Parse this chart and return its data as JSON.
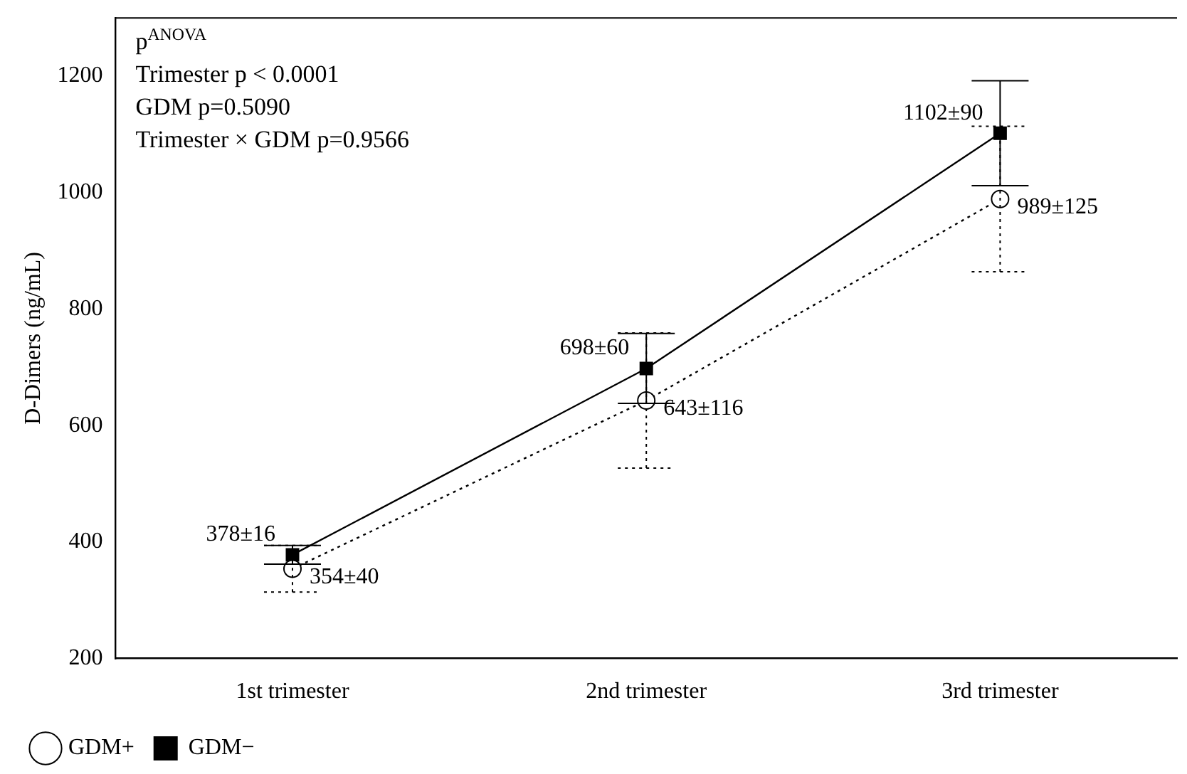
{
  "chart_data": {
    "type": "line",
    "ylabel": "D-Dimers (ng/mL)",
    "categories": [
      "1st trimester",
      "2nd trimester",
      "3rd trimester"
    ],
    "series": [
      {
        "name": "GDM+",
        "color": "#000000",
        "values": [
          354,
          643,
          989
        ],
        "errors": [
          40,
          116,
          125
        ],
        "value_labels": [
          "354±40",
          "643±116",
          "989±125"
        ],
        "marker": "circle",
        "line_style": "dotted"
      },
      {
        "name": "GDM−",
        "color": "#000000",
        "values": [
          378,
          698,
          1102
        ],
        "errors": [
          16,
          60,
          90
        ],
        "value_labels": [
          "378±16",
          "698±60",
          "1102±90"
        ],
        "marker": "square",
        "line_style": "solid"
      }
    ],
    "ylim": [
      200,
      1300
    ],
    "yticks": [
      200,
      400,
      600,
      800,
      1000,
      1200
    ],
    "grid": false,
    "legend": "bottom left",
    "annotations": [
      "p$^{ANOVA}$",
      "Trimester p < 0.0001",
      "GDM p=0.5090",
      "Trimester × GDM p=0.9566"
    ]
  }
}
